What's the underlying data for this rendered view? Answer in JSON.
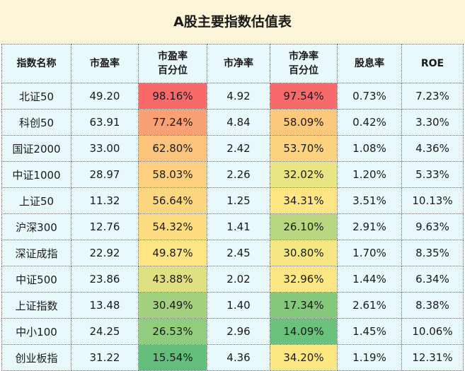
{
  "title": "A股主要指数估值表",
  "headers": [
    "指数名称",
    "市盈率",
    "市盈率\n百分位",
    "市净率",
    "市净率\n百分位",
    "股息率",
    "ROE"
  ],
  "rows": [
    {
      "name": "北证50",
      "pe": "49.20",
      "pe_pct": "98.16%",
      "pb": "4.92",
      "pb_pct": "97.54%",
      "div": "0.73%",
      "roe": "7.23%",
      "pe_color": "#f86a6a",
      "pb_color": "#f8696b"
    },
    {
      "name": "科创50",
      "pe": "63.91",
      "pe_pct": "77.24%",
      "pb": "4.84",
      "pb_pct": "58.09%",
      "div": "0.42%",
      "roe": "3.30%",
      "pe_color": "#f9a074",
      "pb_color": "#fbc87c"
    },
    {
      "name": "国证2000",
      "pe": "33.00",
      "pe_pct": "62.80%",
      "pb": "2.42",
      "pb_pct": "53.70%",
      "div": "1.08%",
      "roe": "4.36%",
      "pe_color": "#fbc37b",
      "pb_color": "#fdd380"
    },
    {
      "name": "中证1000",
      "pe": "28.97",
      "pe_pct": "58.03%",
      "pb": "2.26",
      "pb_pct": "32.02%",
      "div": "1.20%",
      "roe": "5.33%",
      "pe_color": "#fcd07f",
      "pb_color": "#e9e583"
    },
    {
      "name": "上证50",
      "pe": "11.32",
      "pe_pct": "56.64%",
      "pb": "1.25",
      "pb_pct": "34.31%",
      "div": "3.51%",
      "roe": "10.13%",
      "pe_color": "#fdd680",
      "pb_color": "#fde683"
    },
    {
      "name": "沪深300",
      "pe": "12.76",
      "pe_pct": "54.32%",
      "pb": "1.41",
      "pb_pct": "26.10%",
      "div": "2.91%",
      "roe": "9.63%",
      "pe_color": "#fedc81",
      "pb_color": "#b9d780"
    },
    {
      "name": "深证成指",
      "pe": "22.92",
      "pe_pct": "49.87%",
      "pb": "2.45",
      "pb_pct": "30.80%",
      "div": "1.70%",
      "roe": "8.35%",
      "pe_color": "#fee583",
      "pb_color": "#f5e784"
    },
    {
      "name": "中证500",
      "pe": "23.86",
      "pe_pct": "43.88%",
      "pb": "2.02",
      "pb_pct": "32.96%",
      "div": "1.44%",
      "roe": "6.34%",
      "pe_color": "#dfe082",
      "pb_color": "#fde784"
    },
    {
      "name": "上证指数",
      "pe": "13.48",
      "pe_pct": "30.49%",
      "pb": "1.40",
      "pb_pct": "17.34%",
      "div": "2.61%",
      "roe": "8.38%",
      "pe_color": "#a2d07e",
      "pb_color": "#84c87c"
    },
    {
      "name": "中小100",
      "pe": "24.25",
      "pe_pct": "26.53%",
      "pb": "2.96",
      "pb_pct": "14.09%",
      "div": "1.45%",
      "roe": "10.06%",
      "pe_color": "#92cc7e",
      "pb_color": "#6ac17b"
    },
    {
      "name": "创业板指",
      "pe": "31.22",
      "pe_pct": "15.54%",
      "pb": "4.36",
      "pb_pct": "34.20%",
      "div": "1.19%",
      "roe": "12.31%",
      "pe_color": "#63be7b",
      "pb_color": "#fde783"
    }
  ]
}
